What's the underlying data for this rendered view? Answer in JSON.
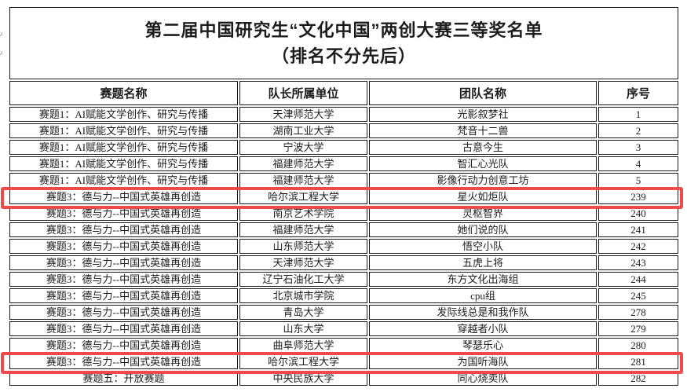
{
  "title": {
    "line1": "第二届中国研究生“文化中国”两创大赛三等奖名单",
    "line2": "（排名不分先后）"
  },
  "table": {
    "columns": [
      "赛题名称",
      "队长所属单位",
      "团队名称",
      "序号"
    ],
    "rows": [
      {
        "topic": "赛题1：AI赋能文学创作、研究与传播",
        "unit": "天津师范大学",
        "team": "光影叙梦社",
        "no": "1",
        "highlight": false
      },
      {
        "topic": "赛题1：AI赋能文学创作、研究与传播",
        "unit": "湖南工业大学",
        "team": "梵音十二兽",
        "no": "2",
        "highlight": false
      },
      {
        "topic": "赛题1：AI赋能文学创作、研究与传播",
        "unit": "宁波大学",
        "team": "古意今生",
        "no": "3",
        "highlight": false
      },
      {
        "topic": "赛题1：AI赋能文学创作、研究与传播",
        "unit": "福建师范大学",
        "team": "智汇心光队",
        "no": "4",
        "highlight": false
      },
      {
        "topic": "赛题1：AI赋能文学创作、研究与传播",
        "unit": "福建师范大学",
        "team": "影像行动力创意工坊",
        "no": "5",
        "highlight": false
      },
      {
        "topic": "赛题3：德与力--中国式英雄再创造",
        "unit": "哈尔滨工程大学",
        "team": "星火如炬队",
        "no": "239",
        "highlight": true
      },
      {
        "topic": "赛题3：德与力--中国式英雄再创造",
        "unit": "南京艺术学院",
        "team": "灵枢智界",
        "no": "240",
        "highlight": false
      },
      {
        "topic": "赛题3：德与力--中国式英雄再创造",
        "unit": "福建师范大学",
        "team": "她们说的队",
        "no": "241",
        "highlight": false
      },
      {
        "topic": "赛题3：德与力--中国式英雄再创造",
        "unit": "山东师范大学",
        "team": "悟空小队",
        "no": "242",
        "highlight": false
      },
      {
        "topic": "赛题3：德与力--中国式英雄再创造",
        "unit": "天津师范大学",
        "team": "五虎上将",
        "no": "243",
        "highlight": false
      },
      {
        "topic": "赛题3：德与力--中国式英雄再创造",
        "unit": "辽宁石油化工大学",
        "team": "东方文化出海组",
        "no": "244",
        "highlight": false
      },
      {
        "topic": "赛题3：德与力--中国式英雄再创造",
        "unit": "北京城市学院",
        "team": "cpu组",
        "no": "245",
        "highlight": false
      },
      {
        "topic": "赛题3：德与力--中国式英雄再创造",
        "unit": "青岛大学",
        "team": "发际线总是和我作队",
        "no": "278",
        "highlight": false
      },
      {
        "topic": "赛题3：德与力--中国式英雄再创造",
        "unit": "山东大学",
        "team": "穿越者小队",
        "no": "279",
        "highlight": false
      },
      {
        "topic": "赛题3：德与力--中国式英雄再创造",
        "unit": "曲阜师范大学",
        "team": "琴瑟乐心",
        "no": "280",
        "highlight": false
      },
      {
        "topic": "赛题3：德与力--中国式英雄再创造",
        "unit": "哈尔滨工程大学",
        "team": "为国听海队",
        "no": "281",
        "highlight": true
      },
      {
        "topic": "赛题五：开放赛题",
        "unit": "中央民族大学",
        "team": "同心烧卖队",
        "no": "282",
        "highlight": false
      }
    ]
  },
  "colors": {
    "highlight_box": "#f04949",
    "text": "#1c1c1c",
    "grid_line": "#1b1b1b"
  }
}
